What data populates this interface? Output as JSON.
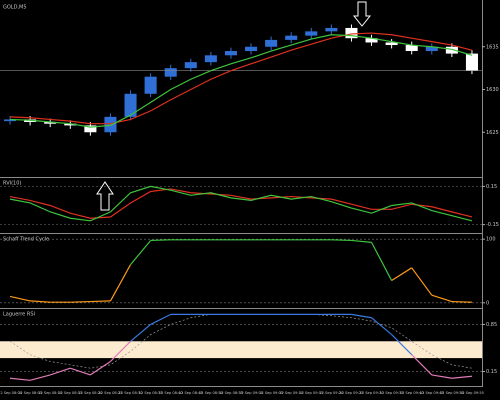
{
  "chart_data": [
    {
      "type": "candlestick",
      "title": "GOLD,M5",
      "categories": [
        "12 Sep 08:00",
        "12 Sep 08:05",
        "12 Sep 08:10",
        "12 Sep 08:15",
        "12 Sep 08:20",
        "12 Sep 08:25",
        "12 Sep 08:30",
        "12 Sep 08:35",
        "12 Sep 08:40",
        "12 Sep 08:45",
        "12 Sep 08:50",
        "12 Sep 08:55",
        "12 Sep 09:00",
        "12 Sep 09:05",
        "12 Sep 09:10",
        "12 Sep 09:15",
        "12 Sep 09:20",
        "12 Sep 09:25",
        "12 Sep 09:30",
        "12 Sep 09:35",
        "12 Sep 09:40",
        "12 Sep 09:45",
        "12 Sep 09:50",
        "12 Sep 09:55"
      ],
      "open": [
        1626.3,
        1626.5,
        1626.2,
        1626.0,
        1625.8,
        1625.0,
        1626.8,
        1629.5,
        1631.5,
        1632.5,
        1633.2,
        1634.0,
        1634.5,
        1635.0,
        1635.8,
        1636.3,
        1636.8,
        1637.2,
        1636.0,
        1635.5,
        1635.2,
        1634.5,
        1635.0,
        1634.2
      ],
      "high": [
        1626.9,
        1626.9,
        1626.6,
        1626.4,
        1626.2,
        1627.2,
        1629.9,
        1631.9,
        1632.9,
        1633.6,
        1634.4,
        1634.9,
        1635.4,
        1636.2,
        1636.7,
        1637.2,
        1637.6,
        1637.6,
        1636.4,
        1635.9,
        1635.6,
        1635.4,
        1635.4,
        1634.6
      ],
      "low": [
        1625.9,
        1625.8,
        1625.6,
        1625.4,
        1624.6,
        1624.6,
        1626.4,
        1629.1,
        1631.1,
        1632.1,
        1632.8,
        1633.6,
        1634.1,
        1634.6,
        1635.4,
        1635.9,
        1636.4,
        1635.6,
        1635.1,
        1634.8,
        1634.1,
        1634.1,
        1633.8,
        1631.8
      ],
      "close": [
        1626.5,
        1626.2,
        1626.0,
        1625.8,
        1625.0,
        1626.8,
        1629.5,
        1631.5,
        1632.5,
        1633.2,
        1634.0,
        1634.5,
        1635.0,
        1635.8,
        1636.3,
        1636.8,
        1637.2,
        1636.0,
        1635.5,
        1635.2,
        1634.5,
        1635.0,
        1634.2,
        1632.2
      ],
      "up_color": "#2f6fd6",
      "down_color": "#ffffff",
      "series": [
        {
          "color": "#e0301e",
          "values": [
            1626.8,
            1626.7,
            1626.5,
            1626.3,
            1626.0,
            1626.0,
            1626.5,
            1627.5,
            1628.8,
            1630.0,
            1631.2,
            1632.2,
            1633.0,
            1633.8,
            1634.6,
            1635.3,
            1636.0,
            1636.5,
            1636.6,
            1636.4,
            1636.0,
            1635.6,
            1635.2,
            1634.6
          ]
        },
        {
          "color": "#3ec43e",
          "values": [
            1626.5,
            1626.4,
            1626.2,
            1626.0,
            1625.6,
            1625.8,
            1627.0,
            1628.5,
            1630.0,
            1631.2,
            1632.2,
            1633.0,
            1633.7,
            1634.5,
            1635.2,
            1635.9,
            1636.4,
            1636.3,
            1636.0,
            1635.6,
            1635.2,
            1635.0,
            1634.7,
            1634.0
          ]
        }
      ],
      "ylim": [
        1620,
        1640
      ],
      "yticks": [
        1625,
        1630,
        1635
      ]
    },
    {
      "type": "line",
      "title": "RVI(10)",
      "series": [
        {
          "color": "#e0301e",
          "values": [
            0.07,
            0.04,
            0.0,
            -0.06,
            -0.1,
            -0.09,
            0.02,
            0.11,
            0.13,
            0.1,
            0.09,
            0.08,
            0.05,
            0.06,
            0.07,
            0.06,
            0.05,
            0.01,
            -0.03,
            -0.03,
            0.01,
            -0.01,
            -0.05,
            -0.09
          ]
        },
        {
          "color": "#3ec43e",
          "values": [
            0.05,
            0.02,
            -0.05,
            -0.1,
            -0.12,
            -0.05,
            0.1,
            0.15,
            0.12,
            0.08,
            0.1,
            0.06,
            0.04,
            0.08,
            0.05,
            0.07,
            0.03,
            -0.02,
            -0.06,
            0.0,
            0.02,
            -0.04,
            -0.08,
            -0.12
          ]
        }
      ],
      "ylim": [
        -0.2,
        0.2
      ],
      "yticks": [
        0.15,
        -0.15
      ]
    },
    {
      "type": "line",
      "title": "Schaff Trend Cycle",
      "series": [
        {
          "colors": [
            "#3ec43e",
            "#ff9a1a"
          ],
          "values": [
            10,
            3,
            1,
            1,
            2,
            3,
            60,
            98,
            99,
            99,
            99,
            99,
            99,
            99,
            99,
            99,
            99,
            98,
            95,
            35,
            55,
            12,
            2,
            1
          ]
        }
      ],
      "ylim": [
        -5,
        105
      ],
      "yticks": [
        100,
        0
      ]
    },
    {
      "type": "line",
      "title": "Laguerre RSI",
      "band": [
        0.35,
        0.6
      ],
      "band_color": "#fdebd0",
      "series": [
        {
          "color": "#9a9a9a",
          "dashed": true,
          "values": [
            0.6,
            0.4,
            0.3,
            0.25,
            0.2,
            0.25,
            0.45,
            0.7,
            0.85,
            0.95,
            1,
            1,
            1,
            1,
            1,
            1,
            0.98,
            0.95,
            0.9,
            0.8,
            0.6,
            0.4,
            0.25,
            0.2
          ]
        },
        {
          "colors": [
            "#3a7be0",
            "#e07ab8"
          ],
          "values": [
            0.05,
            0.02,
            0.1,
            0.2,
            0.1,
            0.3,
            0.6,
            0.85,
            1,
            1,
            1,
            1,
            1,
            1,
            1,
            1,
            1,
            1,
            0.95,
            0.7,
            0.4,
            0.1,
            0.05,
            0.08
          ]
        }
      ],
      "ylim": [
        -0.05,
        1.05
      ],
      "yticks": [
        0.85,
        0.15
      ]
    }
  ]
}
